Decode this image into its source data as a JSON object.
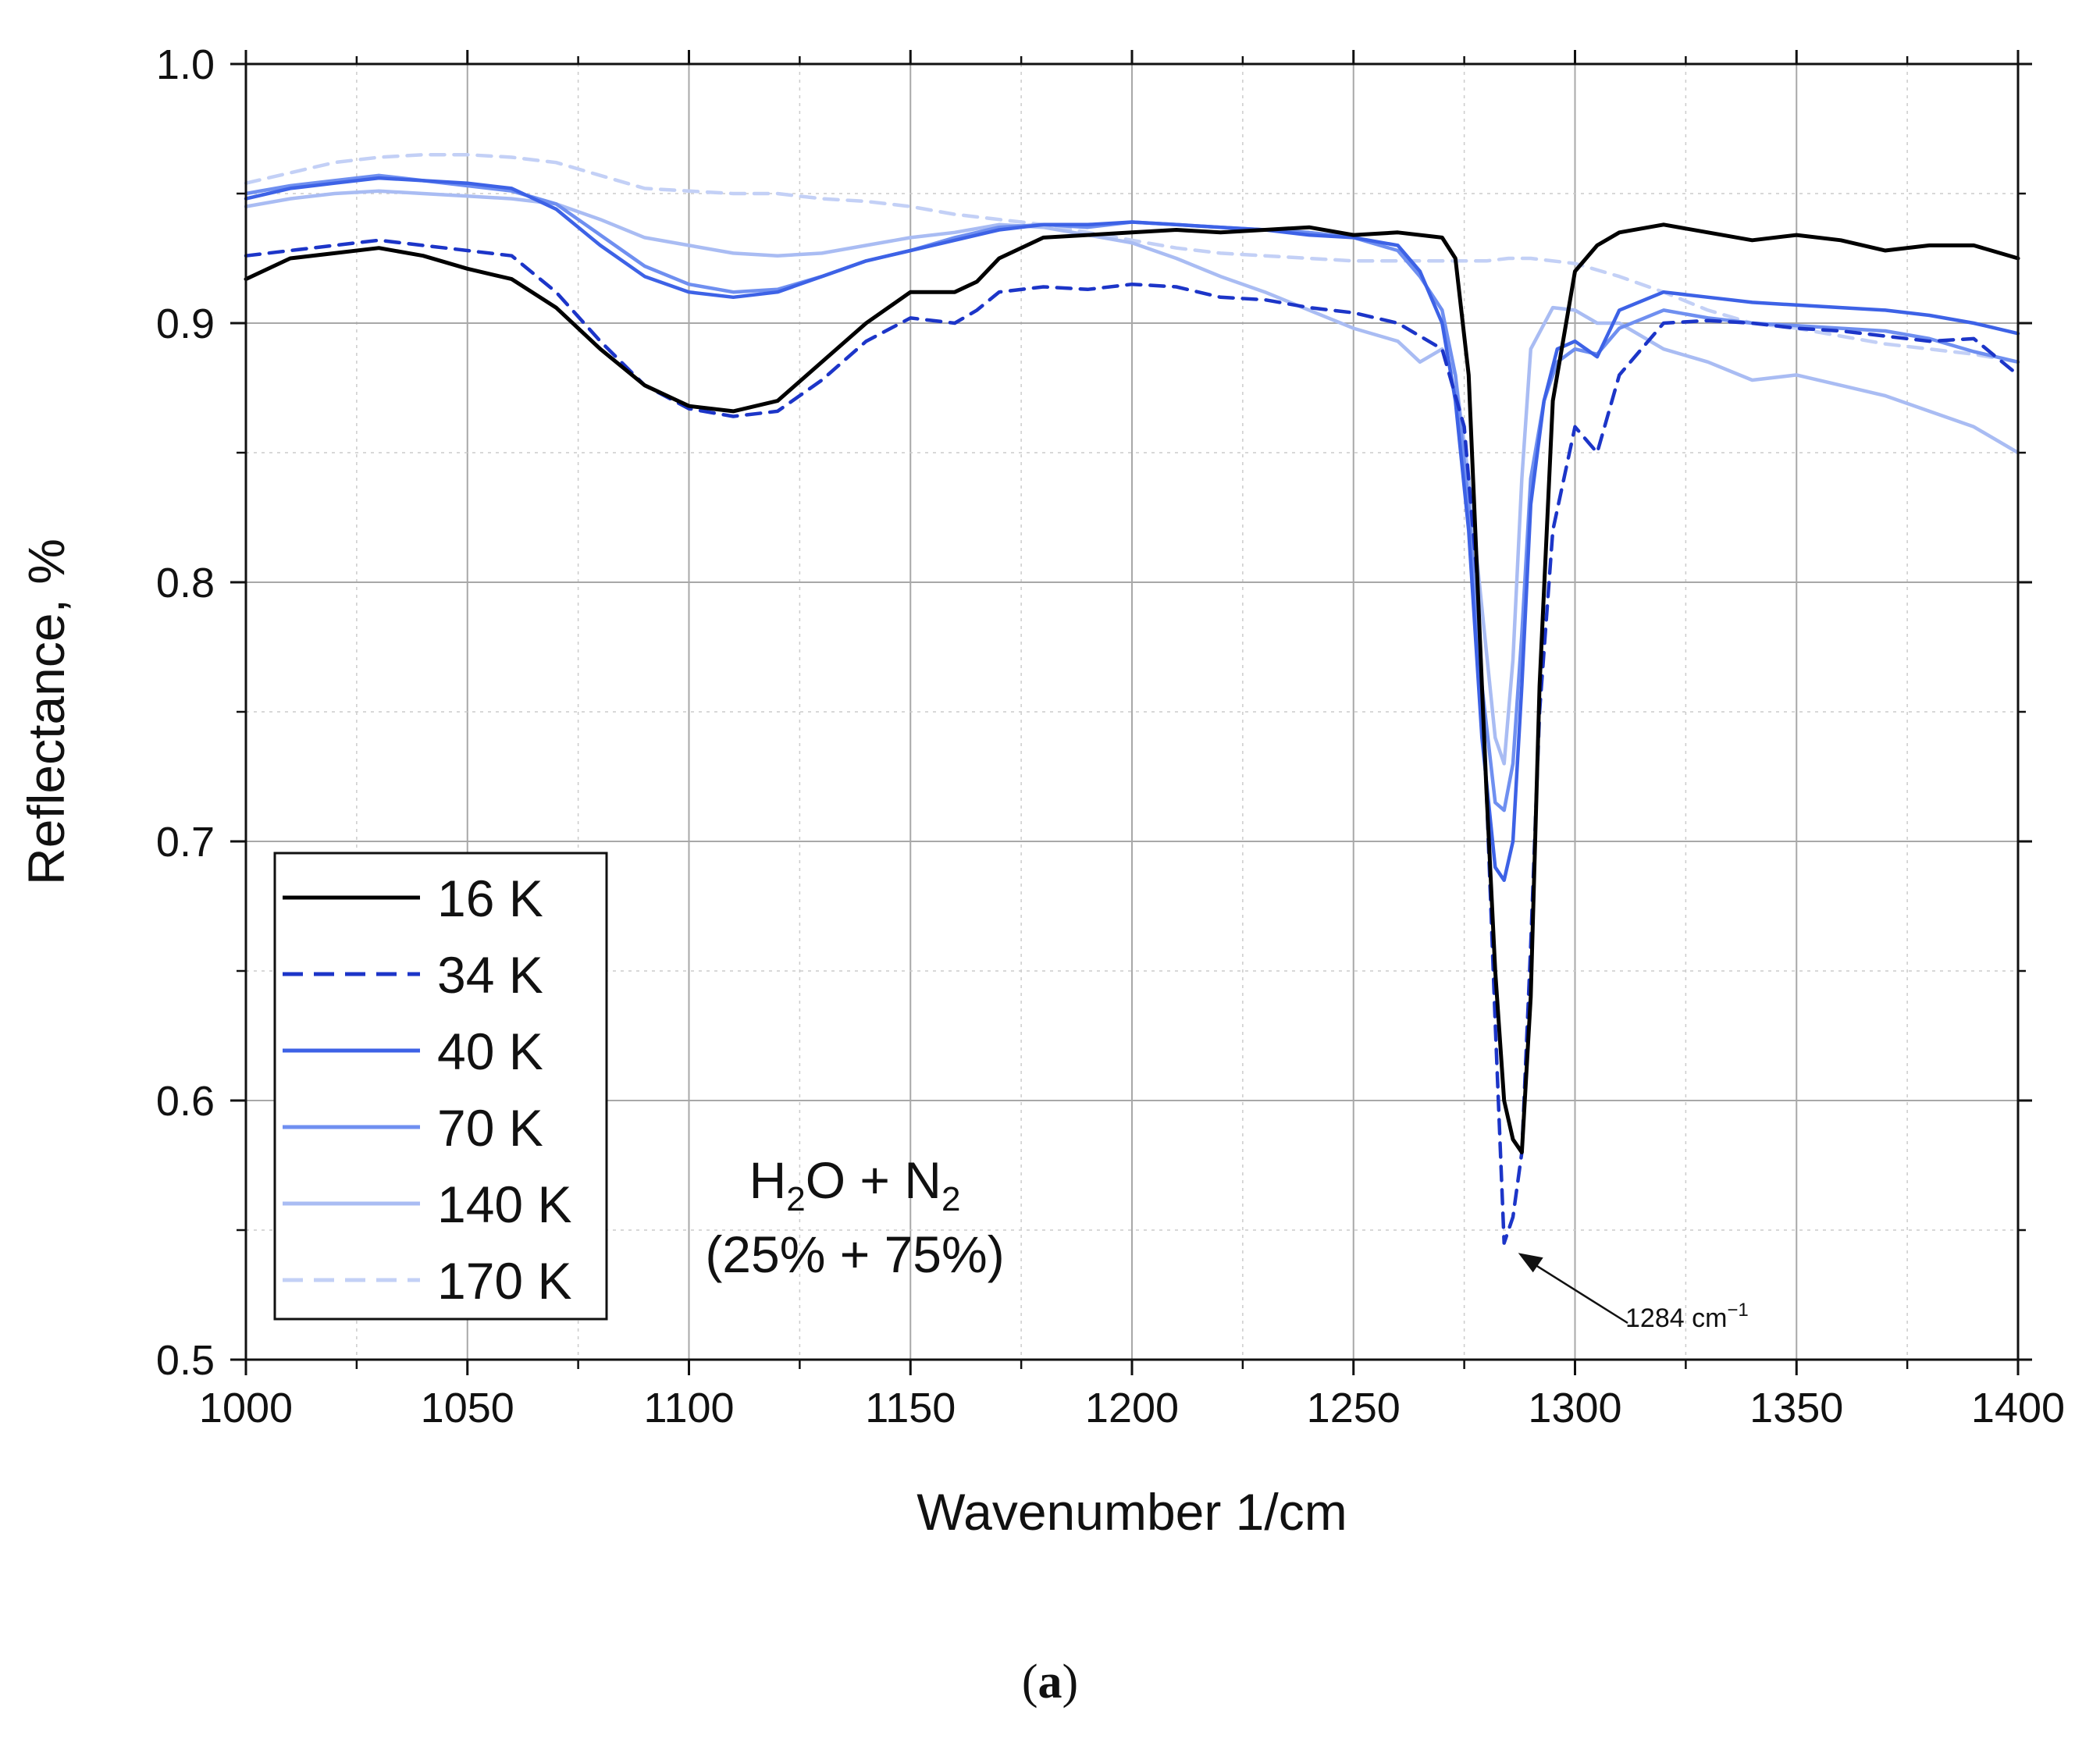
{
  "chart_data": {
    "type": "line",
    "xlabel": "Wavenumber 1/cm",
    "ylabel": "Reflectance, %",
    "xlim": [
      1000,
      1400
    ],
    "ylim": [
      0.5,
      1.0
    ],
    "x_ticks": [
      "1000",
      "1050",
      "1100",
      "1150",
      "1200",
      "1250",
      "1300",
      "1350",
      "1400"
    ],
    "y_ticks": [
      "0.5",
      "0.6",
      "0.7",
      "0.8",
      "0.9",
      "1.0"
    ],
    "grid": true,
    "legend_position": "bottom-left",
    "inset_label": {
      "formula": [
        "H",
        "2",
        "O +  N",
        "2"
      ],
      "composition": "(25% + 75%)"
    },
    "annotation": {
      "text": "1284 cm",
      "sup": "−1",
      "x": 1284,
      "y": 0.543
    },
    "caption": {
      "open": "(",
      "letter": "a",
      "close": ")"
    },
    "series": [
      {
        "name": "16 K",
        "color": "#000000",
        "dash": "solid",
        "x": [
          1000,
          1010,
          1020,
          1030,
          1040,
          1050,
          1060,
          1070,
          1080,
          1090,
          1100,
          1110,
          1120,
          1130,
          1140,
          1150,
          1160,
          1165,
          1170,
          1180,
          1190,
          1200,
          1210,
          1220,
          1230,
          1240,
          1250,
          1260,
          1270,
          1273,
          1276,
          1278,
          1280,
          1282,
          1284,
          1286,
          1288,
          1290,
          1292,
          1295,
          1300,
          1305,
          1310,
          1320,
          1330,
          1340,
          1350,
          1360,
          1370,
          1380,
          1390,
          1400
        ],
        "values": [
          0.917,
          0.925,
          0.927,
          0.929,
          0.926,
          0.921,
          0.917,
          0.906,
          0.89,
          0.876,
          0.868,
          0.866,
          0.87,
          0.885,
          0.9,
          0.912,
          0.912,
          0.916,
          0.925,
          0.933,
          0.934,
          0.935,
          0.936,
          0.935,
          0.936,
          0.937,
          0.934,
          0.935,
          0.933,
          0.925,
          0.88,
          0.8,
          0.72,
          0.65,
          0.6,
          0.585,
          0.58,
          0.64,
          0.76,
          0.87,
          0.92,
          0.93,
          0.935,
          0.938,
          0.935,
          0.932,
          0.934,
          0.932,
          0.928,
          0.93,
          0.93,
          0.925
        ]
      },
      {
        "name": "34 K",
        "color": "#1c35c8",
        "dash": "dashed",
        "x": [
          1000,
          1010,
          1020,
          1030,
          1040,
          1050,
          1060,
          1070,
          1080,
          1090,
          1100,
          1110,
          1120,
          1130,
          1140,
          1150,
          1160,
          1165,
          1170,
          1180,
          1190,
          1200,
          1210,
          1220,
          1230,
          1240,
          1250,
          1260,
          1270,
          1275,
          1278,
          1280,
          1282,
          1284,
          1286,
          1288,
          1290,
          1292,
          1295,
          1300,
          1305,
          1310,
          1320,
          1330,
          1340,
          1350,
          1360,
          1370,
          1380,
          1390,
          1400
        ],
        "values": [
          0.926,
          0.928,
          0.93,
          0.932,
          0.93,
          0.928,
          0.926,
          0.912,
          0.893,
          0.876,
          0.867,
          0.864,
          0.866,
          0.878,
          0.893,
          0.902,
          0.9,
          0.905,
          0.912,
          0.914,
          0.913,
          0.915,
          0.914,
          0.91,
          0.909,
          0.906,
          0.904,
          0.9,
          0.89,
          0.86,
          0.8,
          0.72,
          0.63,
          0.545,
          0.555,
          0.58,
          0.66,
          0.75,
          0.82,
          0.86,
          0.85,
          0.88,
          0.9,
          0.901,
          0.9,
          0.898,
          0.897,
          0.895,
          0.893,
          0.894,
          0.88
        ]
      },
      {
        "name": "40 K",
        "color": "#3d62e6",
        "dash": "solid",
        "x": [
          1000,
          1010,
          1020,
          1030,
          1040,
          1050,
          1060,
          1070,
          1080,
          1090,
          1100,
          1110,
          1120,
          1130,
          1140,
          1150,
          1160,
          1170,
          1180,
          1190,
          1200,
          1210,
          1220,
          1230,
          1240,
          1250,
          1260,
          1265,
          1270,
          1273,
          1276,
          1279,
          1282,
          1284,
          1286,
          1288,
          1290,
          1293,
          1296,
          1300,
          1305,
          1310,
          1320,
          1330,
          1340,
          1350,
          1360,
          1370,
          1380,
          1390,
          1400
        ],
        "values": [
          0.948,
          0.952,
          0.954,
          0.956,
          0.955,
          0.954,
          0.952,
          0.944,
          0.93,
          0.918,
          0.912,
          0.91,
          0.912,
          0.918,
          0.924,
          0.928,
          0.932,
          0.936,
          0.938,
          0.938,
          0.939,
          0.938,
          0.937,
          0.936,
          0.934,
          0.933,
          0.93,
          0.92,
          0.9,
          0.87,
          0.82,
          0.74,
          0.69,
          0.685,
          0.7,
          0.76,
          0.83,
          0.87,
          0.89,
          0.893,
          0.887,
          0.905,
          0.912,
          0.91,
          0.908,
          0.907,
          0.906,
          0.905,
          0.903,
          0.9,
          0.896
        ]
      },
      {
        "name": "70 K",
        "color": "#6f8ff0",
        "dash": "solid",
        "x": [
          1000,
          1010,
          1020,
          1030,
          1040,
          1050,
          1060,
          1070,
          1080,
          1090,
          1100,
          1110,
          1120,
          1130,
          1140,
          1150,
          1160,
          1170,
          1180,
          1190,
          1200,
          1210,
          1220,
          1230,
          1240,
          1250,
          1260,
          1265,
          1270,
          1273,
          1276,
          1279,
          1282,
          1284,
          1286,
          1288,
          1290,
          1293,
          1296,
          1300,
          1305,
          1310,
          1320,
          1330,
          1340,
          1350,
          1360,
          1370,
          1380,
          1390,
          1400
        ],
        "values": [
          0.95,
          0.953,
          0.955,
          0.957,
          0.955,
          0.953,
          0.951,
          0.946,
          0.934,
          0.922,
          0.915,
          0.912,
          0.913,
          0.918,
          0.924,
          0.928,
          0.933,
          0.937,
          0.938,
          0.937,
          0.939,
          0.938,
          0.937,
          0.936,
          0.935,
          0.933,
          0.928,
          0.918,
          0.905,
          0.88,
          0.83,
          0.76,
          0.715,
          0.712,
          0.73,
          0.78,
          0.84,
          0.87,
          0.885,
          0.89,
          0.888,
          0.898,
          0.905,
          0.902,
          0.9,
          0.899,
          0.898,
          0.897,
          0.894,
          0.889,
          0.885
        ]
      },
      {
        "name": "140 K",
        "color": "#a9bcf3",
        "dash": "solid",
        "x": [
          1000,
          1010,
          1020,
          1030,
          1040,
          1050,
          1060,
          1070,
          1080,
          1090,
          1100,
          1110,
          1120,
          1130,
          1140,
          1150,
          1160,
          1170,
          1180,
          1190,
          1200,
          1210,
          1220,
          1230,
          1240,
          1250,
          1260,
          1265,
          1270,
          1273,
          1276,
          1279,
          1282,
          1284,
          1286,
          1288,
          1290,
          1295,
          1300,
          1305,
          1310,
          1320,
          1330,
          1340,
          1350,
          1360,
          1370,
          1380,
          1390,
          1400
        ],
        "values": [
          0.945,
          0.948,
          0.95,
          0.951,
          0.95,
          0.949,
          0.948,
          0.946,
          0.94,
          0.933,
          0.93,
          0.927,
          0.926,
          0.927,
          0.93,
          0.933,
          0.935,
          0.938,
          0.937,
          0.934,
          0.931,
          0.925,
          0.918,
          0.912,
          0.905,
          0.898,
          0.893,
          0.885,
          0.89,
          0.88,
          0.84,
          0.79,
          0.74,
          0.73,
          0.77,
          0.84,
          0.89,
          0.906,
          0.905,
          0.9,
          0.9,
          0.89,
          0.885,
          0.878,
          0.88,
          0.876,
          0.872,
          0.866,
          0.86,
          0.85
        ]
      },
      {
        "name": "170 K",
        "color": "#c3d0f6",
        "dash": "dashed",
        "x": [
          1000,
          1010,
          1020,
          1030,
          1040,
          1050,
          1060,
          1070,
          1080,
          1090,
          1100,
          1110,
          1120,
          1130,
          1140,
          1150,
          1160,
          1170,
          1180,
          1190,
          1200,
          1210,
          1220,
          1230,
          1240,
          1250,
          1260,
          1270,
          1280,
          1285,
          1290,
          1300,
          1310,
          1320,
          1330,
          1340,
          1350,
          1360,
          1370,
          1380,
          1390,
          1400
        ],
        "values": [
          0.954,
          0.958,
          0.962,
          0.964,
          0.965,
          0.965,
          0.964,
          0.962,
          0.957,
          0.952,
          0.951,
          0.95,
          0.95,
          0.948,
          0.947,
          0.945,
          0.942,
          0.94,
          0.938,
          0.935,
          0.932,
          0.929,
          0.927,
          0.926,
          0.925,
          0.924,
          0.924,
          0.924,
          0.924,
          0.925,
          0.925,
          0.923,
          0.918,
          0.912,
          0.905,
          0.9,
          0.898,
          0.895,
          0.892,
          0.89,
          0.888,
          0.885
        ]
      }
    ]
  }
}
